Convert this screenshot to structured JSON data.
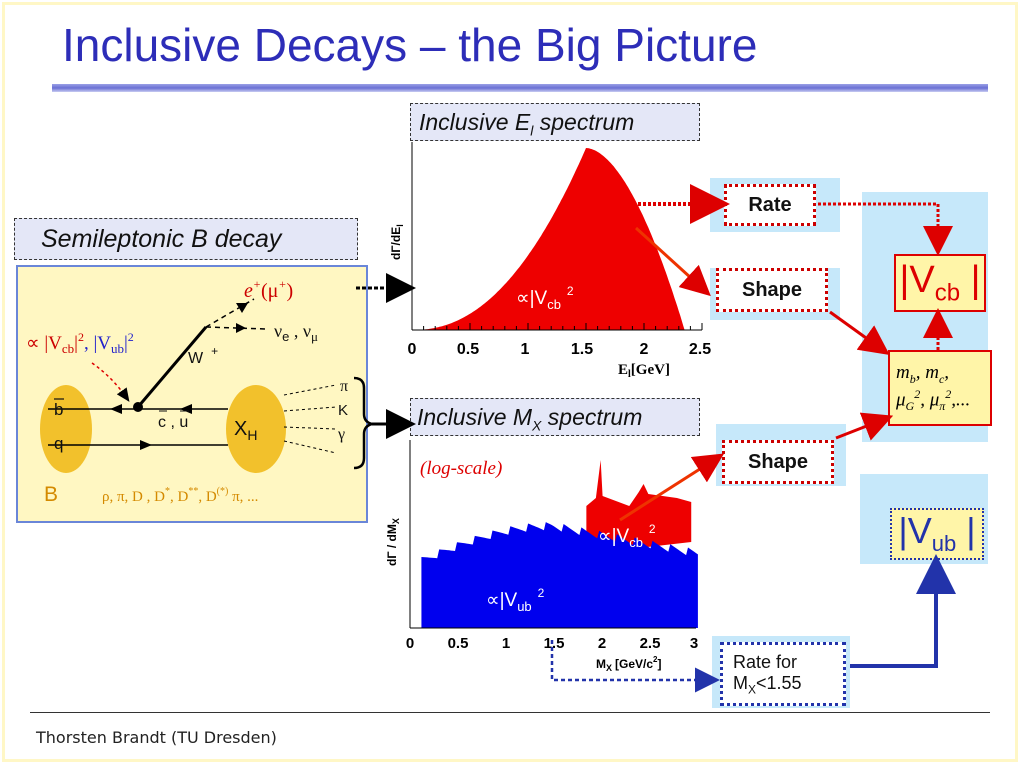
{
  "title": "Inclusive Decays – the Big Picture",
  "footer": "Thorsten Brandt (TU Dresden)",
  "semileptonic": {
    "label": "Semileptonic B decay",
    "coupling": "∝ |V",
    "coupling_cb": "cb",
    "coupling_mid": "|",
    "coupling_sq": "2",
    "coupling_ub_pre": ", |V",
    "coupling_ub": "ub",
    "lepton": "e",
    "lepton_sup": "+",
    "lepton_mu": "(μ",
    "lepton_mu_sup": "+",
    "lepton_close": ")",
    "neutrino": "ν",
    "neutrino_e": "e",
    "neutrino_sep": " , ν",
    "neutrino_mu": "μ",
    "w_boson": "W",
    "w_sup": "+",
    "bbar": "b",
    "q": "q",
    "quarks": "c , u",
    "xh": "X",
    "xh_sub": "H",
    "pi": "π",
    "k": "K",
    "gamma": "γ",
    "b_meson": "B",
    "states": "ρ, π, D , D",
    "states_star": "*",
    "states_2": ", D",
    "states_starstar": "**",
    "states_3": ", D",
    "states_paren": "(*)",
    "states_4": " π, ..."
  },
  "el_spectrum": {
    "label_pre": "Inclusive E",
    "label_sub": "l",
    "label_post": " spectrum",
    "ylabel": "dΓ/dE",
    "ylabel_sub": "l",
    "xlabel": "E",
    "xlabel_sub": "l",
    "xlabel_unit": "[GeV]",
    "ticks": [
      "0",
      "0.5",
      "1",
      "1.5",
      "2",
      "2.5"
    ],
    "annotation": "∝|V",
    "annotation_sub": "cb",
    "annotation_sup": "2"
  },
  "mx_spectrum": {
    "label_pre": "Inclusive M",
    "label_sub": "X",
    "label_post": " spectrum",
    "scale_note": "(log-scale)",
    "ylabel": "dΓ / dM",
    "ylabel_sub": "X",
    "xlabel": "M",
    "xlabel_sub": "X",
    "xlabel_unit": "[GeV/c",
    "xlabel_unit_sup": "2",
    "xlabel_unit_close": "]",
    "ticks": [
      "0",
      "0.5",
      "1",
      "1.5",
      "2",
      "2.5",
      "3"
    ],
    "annotation_cb": "∝|V",
    "annotation_cb_sub": "cb",
    "annotation_cb_sup": "2",
    "annotation_ub": "∝|V",
    "annotation_ub_sub": "ub",
    "annotation_ub_sup": "2"
  },
  "tags": {
    "rate": "Rate",
    "shape_el": "Shape",
    "shape_mx": "Shape",
    "rate_for": "Rate for",
    "rate_for_m": "M",
    "rate_for_sub": "X",
    "rate_for_val": "<1.55"
  },
  "results": {
    "vcb": "V",
    "vcb_sub": "cb",
    "vub": "V",
    "vub_sub": "ub",
    "params_line1": "m",
    "params_mb_sub": "b",
    "params_sep": ", m",
    "params_mc_sub": "c",
    "params_comma": ",",
    "params_mu": "μ",
    "params_mu_g_sub": "G",
    "params_sq": "2",
    "params_mu2": ", μ",
    "params_mu_pi_sub": "π",
    "params_tail": ",..."
  },
  "colors": {
    "title": "#2d2db8",
    "cb_red": "#ee0000",
    "ub_blue": "#0000ee",
    "arrow_red": "#dd0000",
    "arrow_blue": "#2233aa",
    "light_blue": "#c6e8fa"
  }
}
